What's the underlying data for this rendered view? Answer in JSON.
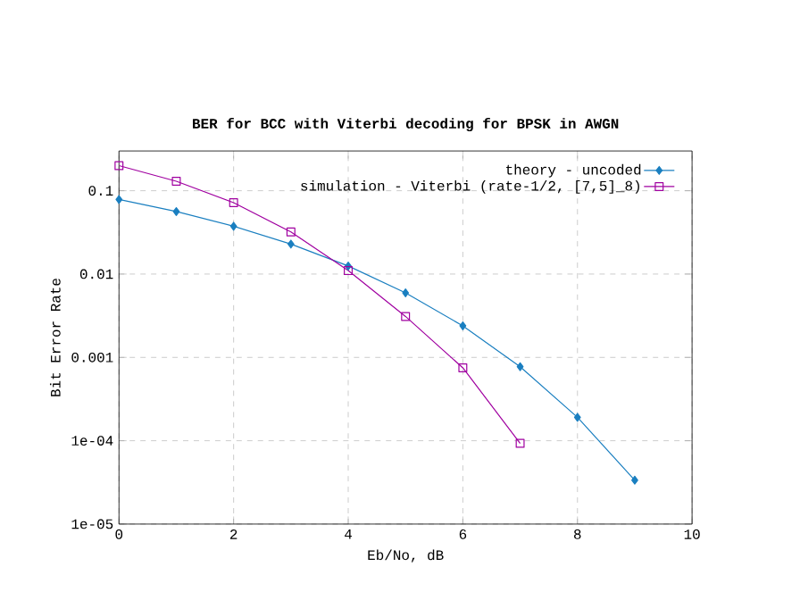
{
  "chart_data": {
    "type": "line",
    "title": "BER for BCC with Viterbi decoding for BPSK in AWGN",
    "xlabel": "Eb/No, dB",
    "ylabel": "Bit Error Rate",
    "x": [
      0,
      1,
      2,
      3,
      4,
      5,
      6,
      7,
      8,
      9
    ],
    "series": [
      {
        "name": "theory - uncoded",
        "color": "#1a7fc0",
        "marker": "diamond",
        "values": [
          0.0786,
          0.0563,
          0.0375,
          0.0229,
          0.0125,
          0.00595,
          0.00239,
          0.000773,
          0.000191,
          3.36e-05
        ]
      },
      {
        "name": "simulation - Viterbi (rate-1/2, [7,5]_8)",
        "color": "#a000a0",
        "marker": "square",
        "values": [
          0.2,
          0.13,
          0.072,
          0.032,
          0.011,
          0.0031,
          0.00075,
          9.3e-05,
          null,
          null
        ]
      }
    ],
    "log": "y",
    "grid": true,
    "legend": "top right",
    "line_style": "solid",
    "xlim": [
      0,
      10
    ],
    "xticks": [
      0,
      2,
      4,
      6,
      8,
      10
    ],
    "ylim": [
      1e-05,
      0.3
    ],
    "yticks": [
      {
        "value": 0.1,
        "label": "0.1"
      },
      {
        "value": 0.01,
        "label": "0.01"
      },
      {
        "value": 0.001,
        "label": "0.001"
      },
      {
        "value": 0.0001,
        "label": "1e-04"
      },
      {
        "value": 1e-05,
        "label": "1e-05"
      }
    ]
  }
}
